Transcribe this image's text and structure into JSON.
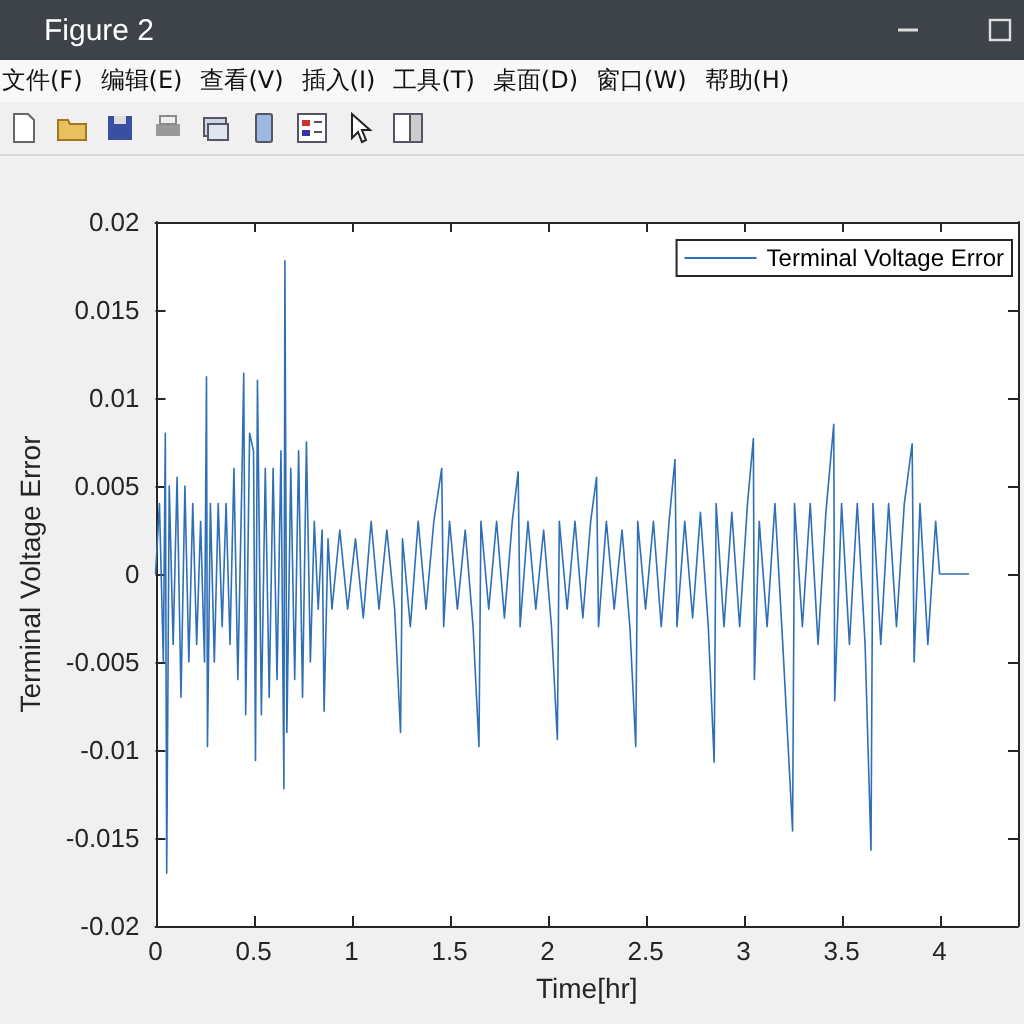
{
  "chart_data": {
    "type": "line",
    "title": "Figure 2",
    "annotations": [
      "文件(F)",
      "编辑(E)",
      "查看(V)",
      "插入(I)",
      "工具(T)",
      "桌面(D)",
      "窗口(W)",
      "帮助(H)"
    ],
    "xlabel": "Time[hr]",
    "ylabel": "Terminal Voltage Error",
    "xlim": [
      0,
      4.4
    ],
    "ylim": [
      -0.02,
      0.02
    ],
    "xticks": [
      0,
      0.5,
      1,
      1.5,
      2,
      2.5,
      3,
      3.5,
      4
    ],
    "yticks": [
      -0.02,
      -0.015,
      -0.01,
      -0.005,
      0,
      0.005,
      0.01,
      0.015,
      0.02
    ],
    "grid": false,
    "legend": "top right",
    "marker": "none",
    "line_style": "solid",
    "series": [
      {
        "name": "Terminal Voltage Error",
        "color": "#2f6fb6",
        "x": [
          0,
          0.02,
          0.04,
          0.05,
          0.057,
          0.07,
          0.09,
          0.11,
          0.13,
          0.15,
          0.17,
          0.19,
          0.21,
          0.23,
          0.25,
          0.26,
          0.265,
          0.28,
          0.3,
          0.32,
          0.34,
          0.36,
          0.38,
          0.4,
          0.42,
          0.44,
          0.45,
          0.46,
          0.48,
          0.5,
          0.51,
          0.52,
          0.54,
          0.56,
          0.58,
          0.6,
          0.62,
          0.64,
          0.655,
          0.66,
          0.67,
          0.69,
          0.71,
          0.73,
          0.75,
          0.77,
          0.79,
          0.81,
          0.83,
          0.85,
          0.86,
          0.88,
          0.9,
          0.94,
          0.98,
          1.02,
          1.06,
          1.1,
          1.14,
          1.18,
          1.22,
          1.25,
          1.26,
          1.3,
          1.34,
          1.38,
          1.42,
          1.46,
          1.47,
          1.5,
          1.54,
          1.58,
          1.62,
          1.65,
          1.66,
          1.7,
          1.74,
          1.78,
          1.82,
          1.85,
          1.86,
          1.9,
          1.94,
          1.98,
          2.02,
          2.05,
          2.06,
          2.1,
          2.14,
          2.18,
          2.22,
          2.25,
          2.26,
          2.3,
          2.34,
          2.38,
          2.42,
          2.45,
          2.46,
          2.5,
          2.54,
          2.58,
          2.62,
          2.65,
          2.66,
          2.7,
          2.74,
          2.78,
          2.82,
          2.85,
          2.86,
          2.9,
          2.94,
          2.98,
          3.02,
          3.05,
          3.055,
          3.08,
          3.12,
          3.16,
          3.2,
          3.25,
          3.26,
          3.3,
          3.34,
          3.38,
          3.42,
          3.46,
          3.465,
          3.5,
          3.54,
          3.58,
          3.62,
          3.65,
          3.66,
          3.7,
          3.74,
          3.78,
          3.82,
          3.86,
          3.87,
          3.9,
          3.94,
          3.98,
          4,
          4.15
        ],
        "values": [
          0,
          0.004,
          -0.005,
          0.008,
          -0.017,
          0.005,
          -0.004,
          0.0055,
          -0.007,
          0.005,
          -0.005,
          0.004,
          -0.004,
          0.003,
          -0.005,
          0.0112,
          -0.0098,
          0.004,
          -0.005,
          0.004,
          -0.003,
          0.004,
          -0.004,
          0.006,
          -0.006,
          0.005,
          0.0114,
          -0.008,
          0.008,
          0.007,
          -0.0106,
          0.011,
          -0.008,
          0.006,
          -0.007,
          0.006,
          -0.006,
          0.007,
          -0.0122,
          0.0178,
          -0.009,
          0.006,
          -0.006,
          0.007,
          -0.007,
          0.0075,
          -0.005,
          0.003,
          -0.002,
          0.0025,
          -0.0078,
          0.002,
          -0.002,
          0.0025,
          -0.002,
          0.002,
          -0.0025,
          0.003,
          -0.002,
          0.0025,
          -0.002,
          -0.009,
          0.002,
          -0.003,
          0.003,
          -0.002,
          0.003,
          0.006,
          -0.003,
          0.003,
          -0.002,
          0.0025,
          -0.003,
          -0.0098,
          0.003,
          -0.002,
          0.003,
          -0.0025,
          0.003,
          0.0058,
          -0.003,
          0.003,
          -0.002,
          0.0025,
          -0.003,
          -0.0094,
          0.003,
          -0.002,
          0.003,
          -0.0025,
          0.003,
          0.0055,
          -0.003,
          0.003,
          -0.002,
          0.0025,
          -0.003,
          -0.0098,
          0.003,
          -0.002,
          0.003,
          -0.003,
          0.003,
          0.0065,
          -0.003,
          0.003,
          -0.0025,
          0.0035,
          -0.003,
          -0.0107,
          0.004,
          -0.003,
          0.0035,
          -0.003,
          0.004,
          0.0077,
          -0.006,
          0.003,
          -0.003,
          0.004,
          -0.004,
          -0.0146,
          0.004,
          -0.003,
          0.004,
          -0.004,
          0.0035,
          0.0085,
          -0.0072,
          0.004,
          -0.004,
          0.004,
          -0.004,
          -0.0157,
          0.004,
          -0.004,
          0.004,
          -0.003,
          0.004,
          0.0074,
          -0.005,
          0.004,
          -0.004,
          0.003,
          0,
          0
        ]
      }
    ]
  }
}
